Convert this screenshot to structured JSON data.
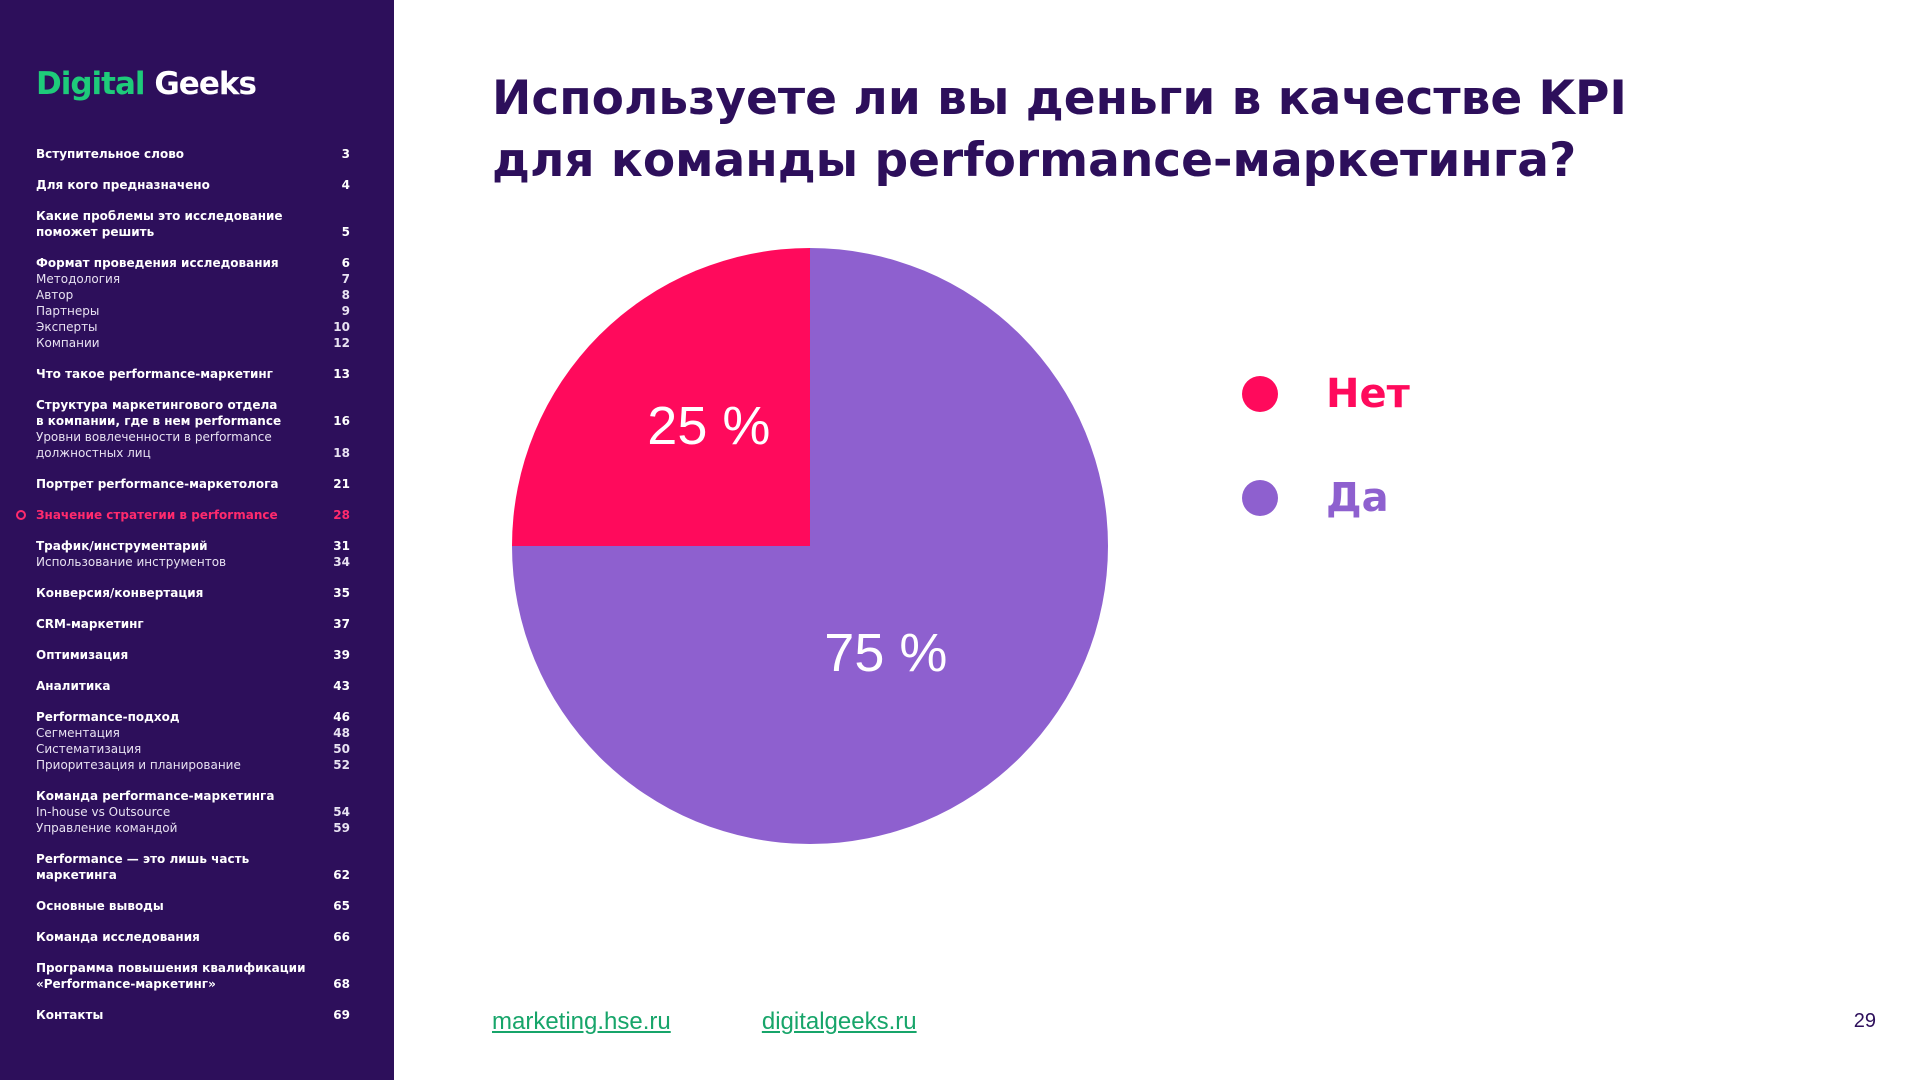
{
  "sidebar": {
    "logo": {
      "word1": "Digital",
      "word2": "Geeks"
    },
    "toc": [
      {
        "items": [
          {
            "label": "Вступительное слово",
            "page": "3",
            "type": "main"
          }
        ]
      },
      {
        "items": [
          {
            "label": "Для кого предназначено",
            "page": "4",
            "type": "main"
          }
        ]
      },
      {
        "items": [
          {
            "label": "Какие проблемы это исследование\nпоможет решить",
            "page": "5",
            "type": "main"
          }
        ]
      },
      {
        "items": [
          {
            "label": "Формат проведения исследования",
            "page": "6",
            "type": "main"
          },
          {
            "label": "Методология",
            "page": "7",
            "type": "sub"
          },
          {
            "label": "Автор",
            "page": "8",
            "type": "sub"
          },
          {
            "label": "Партнеры",
            "page": "9",
            "type": "sub"
          },
          {
            "label": "Эксперты",
            "page": "10",
            "type": "sub"
          },
          {
            "label": "Компании",
            "page": "12",
            "type": "sub"
          }
        ]
      },
      {
        "items": [
          {
            "label": "Что такое performance-маркетинг",
            "page": "13",
            "type": "main"
          }
        ]
      },
      {
        "items": [
          {
            "label": "Структура маркетингового отдела\nв компании, где в нем performance",
            "page": "16",
            "type": "main"
          },
          {
            "label": "Уровни вовлеченности в performance\nдолжностных лиц",
            "page": "18",
            "type": "sub"
          }
        ]
      },
      {
        "items": [
          {
            "label": "Портрет performance-маркетолога",
            "page": "21",
            "type": "main"
          }
        ]
      },
      {
        "items": [
          {
            "label": "Значение стратегии в performance",
            "page": "28",
            "type": "main",
            "active": true
          }
        ]
      },
      {
        "items": [
          {
            "label": "Трафик/инструментарий",
            "page": "31",
            "type": "main"
          },
          {
            "label": "Использование инструментов",
            "page": "34",
            "type": "sub"
          }
        ]
      },
      {
        "items": [
          {
            "label": "Конверсия/конвертация",
            "page": "35",
            "type": "main"
          }
        ]
      },
      {
        "items": [
          {
            "label": "CRM-маркетинг",
            "page": "37",
            "type": "main"
          }
        ]
      },
      {
        "items": [
          {
            "label": "Оптимизация",
            "page": "39",
            "type": "main"
          }
        ]
      },
      {
        "items": [
          {
            "label": "Аналитика",
            "page": "43",
            "type": "main"
          }
        ]
      },
      {
        "items": [
          {
            "label": "Performance-подход",
            "page": "46",
            "type": "main"
          },
          {
            "label": "Сегментация",
            "page": "48",
            "type": "sub"
          },
          {
            "label": "Систематизация",
            "page": "50",
            "type": "sub"
          },
          {
            "label": "Приоритезация и планирование",
            "page": "52",
            "type": "sub"
          }
        ]
      },
      {
        "items": [
          {
            "label": "Команда performance-маркетинга",
            "page": "",
            "type": "main"
          },
          {
            "label": "In-house vs Outsource",
            "page": "54",
            "type": "sub"
          },
          {
            "label": "Управление командой",
            "page": "59",
            "type": "sub"
          }
        ]
      },
      {
        "items": [
          {
            "label": "Performance — это лишь часть маркетинга",
            "page": "62",
            "type": "main"
          }
        ]
      },
      {
        "items": [
          {
            "label": "Основные выводы",
            "page": "65",
            "type": "main"
          }
        ]
      },
      {
        "items": [
          {
            "label": "Команда исследования",
            "page": "66",
            "type": "main"
          }
        ]
      },
      {
        "items": [
          {
            "label": "Программа повышения квалификации\n«Performance-маркетинг»",
            "page": "68",
            "type": "main"
          }
        ]
      },
      {
        "items": [
          {
            "label": "Контакты",
            "page": "69",
            "type": "main"
          }
        ]
      }
    ]
  },
  "main": {
    "title": "Используете ли вы деньги в качестве KPI\nдля команды performance-маркетинга?"
  },
  "chart_data": {
    "type": "pie",
    "title": "Используете ли вы деньги в качестве KPI для команды performance-маркетинга?",
    "slices": [
      {
        "label": "Нет",
        "value": 25,
        "value_label": "25 %",
        "color": "#ff0a5c"
      },
      {
        "label": "Да",
        "value": 75,
        "value_label": "75 %",
        "color": "#8e60cf"
      }
    ],
    "legend_position": "right"
  },
  "footer": {
    "links": [
      "marketing.hse.ru",
      "digitalgeeks.ru"
    ],
    "page_number": "29"
  },
  "colors": {
    "sidebar_bg": "#2d0f5b",
    "title": "#2d0f5b",
    "accent_pink": "#ff0a5c",
    "accent_purple": "#8e60cf",
    "link_green": "#17a56a",
    "logo_green": "#1ecb7a"
  }
}
